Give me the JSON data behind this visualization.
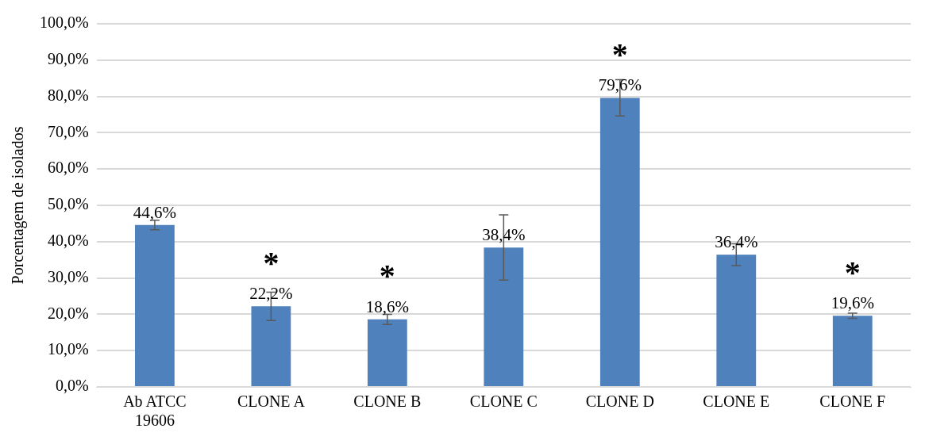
{
  "chart_data": {
    "type": "bar",
    "ylabel": "Porcentagem de isolados",
    "categories": [
      "Ab ATCC 19606",
      "CLONE A",
      "CLONE B",
      "CLONE C",
      "CLONE D",
      "CLONE E",
      "CLONE F"
    ],
    "values": [
      44.6,
      22.2,
      18.6,
      38.4,
      79.6,
      36.4,
      19.6
    ],
    "errors": [
      1.3,
      3.9,
      1.4,
      9,
      5,
      3,
      0.7
    ],
    "value_labels": [
      "44,6%",
      "22,2%",
      "18,6%",
      "38,4%",
      "79,6%",
      "36,4%",
      "19,6%"
    ],
    "color": "#4f81bd",
    "ylim": [
      0,
      100
    ],
    "yticks": [
      {
        "value": 0,
        "label": "0,0%"
      },
      {
        "value": 10,
        "label": "10,0%"
      },
      {
        "value": 20,
        "label": "20,0%"
      },
      {
        "value": 30,
        "label": "30,0%"
      },
      {
        "value": 40,
        "label": "40,0%"
      },
      {
        "value": 50,
        "label": "50,0%"
      },
      {
        "value": 60,
        "label": "60,0%"
      },
      {
        "value": 70,
        "label": "70,0%"
      },
      {
        "value": 80,
        "label": "80,0%"
      },
      {
        "value": 90,
        "label": "90,0%"
      },
      {
        "value": 100,
        "label": "100,0%"
      }
    ],
    "grid": "y",
    "legend": false,
    "annotations": [
      {
        "text": "*",
        "x": "CLONE A",
        "y": 22.2
      },
      {
        "text": "*",
        "x": "CLONE B",
        "y": 18.6
      },
      {
        "text": "*",
        "x": "CLONE D",
        "y": 79.6
      },
      {
        "text": "*",
        "x": "CLONE F",
        "y": 19.6
      }
    ]
  }
}
